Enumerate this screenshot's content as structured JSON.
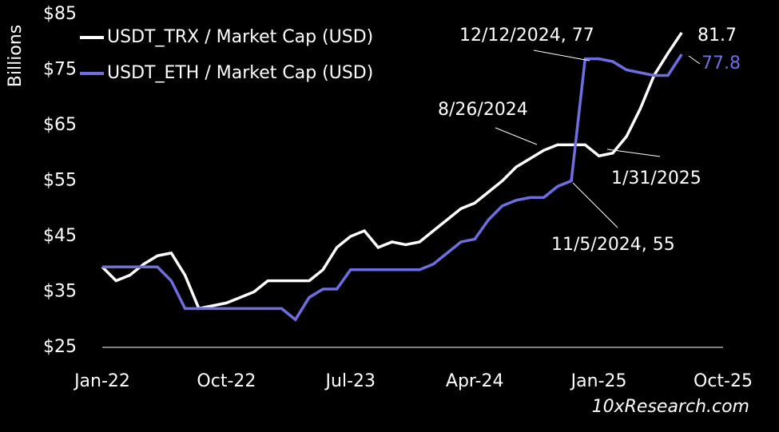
{
  "chart_data": {
    "type": "line",
    "y_label": "Billions",
    "source": "10xResearch.com",
    "x": [
      "2022-01",
      "2022-02",
      "2022-03",
      "2022-04",
      "2022-05",
      "2022-06",
      "2022-07",
      "2022-08",
      "2022-09",
      "2022-10",
      "2022-11",
      "2022-12",
      "2023-01",
      "2023-02",
      "2023-03",
      "2023-04",
      "2023-05",
      "2023-06",
      "2023-07",
      "2023-08",
      "2023-09",
      "2023-10",
      "2023-11",
      "2023-12",
      "2024-01",
      "2024-02",
      "2024-03",
      "2024-04",
      "2024-05",
      "2024-06",
      "2024-07",
      "2024-08",
      "2024-09",
      "2024-10",
      "2024-11",
      "2024-12",
      "2025-01",
      "2025-02",
      "2025-03",
      "2025-04",
      "2025-05",
      "2025-06",
      "2025-07"
    ],
    "series": [
      {
        "name": "USDT_TRX / Market Cap (USD)",
        "color": "#ffffff",
        "values": [
          39.5,
          37,
          38,
          40,
          41.5,
          42,
          38,
          32,
          32.5,
          33,
          34,
          35,
          37,
          37,
          37,
          37,
          39,
          43,
          45,
          46,
          43,
          44,
          43.5,
          44,
          46,
          48,
          50,
          51,
          53,
          55,
          57.5,
          59,
          60.5,
          61.5,
          61.5,
          61.5,
          59.5,
          60,
          63,
          68,
          74,
          78,
          81.7
        ]
      },
      {
        "name": "USDT_ETH / Market Cap (USD)",
        "color": "#6e6ee0",
        "values": [
          39.5,
          39.5,
          39.5,
          39.5,
          39.5,
          37,
          32,
          32,
          32,
          32,
          32,
          32,
          32,
          32,
          30,
          34,
          35.5,
          35.5,
          39,
          39,
          39,
          39,
          39,
          39,
          40,
          42,
          44,
          44.5,
          48,
          50.5,
          51.5,
          52,
          52,
          54,
          55,
          77,
          77,
          76.5,
          75,
          74.5,
          74,
          74,
          77.8
        ]
      }
    ],
    "annotations": [
      "12/12/2024, 77",
      "8/26/2024",
      "1/31/2025",
      "11/5/2024, 55",
      "81.7",
      "77.8"
    ],
    "xlim": [
      "2022-01",
      "2025-10"
    ],
    "xticks": [
      {
        "value": "2022-01",
        "label": "Jan-22"
      },
      {
        "value": "2022-10",
        "label": "Oct-22"
      },
      {
        "value": "2023-07",
        "label": "Jul-23"
      },
      {
        "value": "2024-04",
        "label": "Apr-24"
      },
      {
        "value": "2025-01",
        "label": "Jan-25"
      },
      {
        "value": "2025-10",
        "label": "Oct-25"
      }
    ],
    "ylim": [
      25,
      85
    ],
    "yticks": [
      {
        "value": 25,
        "label": "$25"
      },
      {
        "value": 35,
        "label": "$35"
      },
      {
        "value": 45,
        "label": "$45"
      },
      {
        "value": 55,
        "label": "$55"
      },
      {
        "value": 65,
        "label": "$65"
      },
      {
        "value": 75,
        "label": "$75"
      },
      {
        "value": 85,
        "label": "$85"
      }
    ]
  }
}
